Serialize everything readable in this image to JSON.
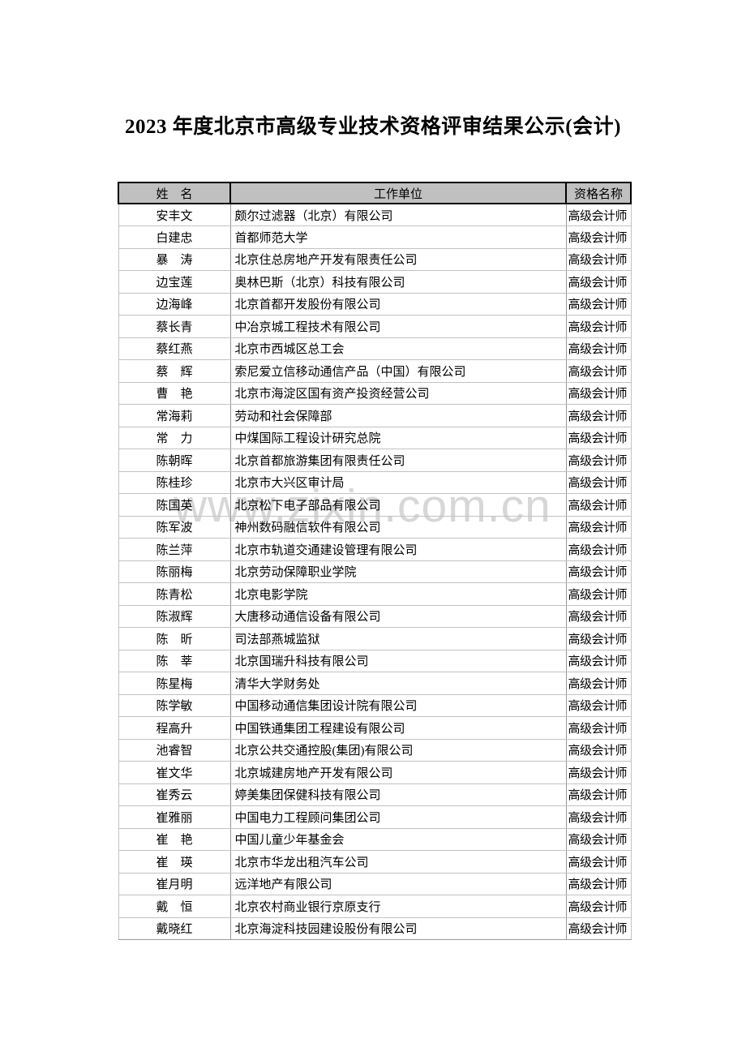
{
  "page": {
    "title": "2023 年度北京市高级专业技术资格评审结果公示(会计)",
    "watermark": "www.zixin.com.cn"
  },
  "table": {
    "headers": [
      "姓　名",
      "工作单位",
      "资格名称"
    ],
    "rows": [
      {
        "name": "安丰文",
        "employer": "颇尔过滤器（北京）有限公司",
        "qualification": "高级会计师"
      },
      {
        "name": "白建忠",
        "employer": "首都师范大学",
        "qualification": "高级会计师"
      },
      {
        "name": "暴　涛",
        "employer": "北京住总房地产开发有限责任公司",
        "qualification": "高级会计师"
      },
      {
        "name": "边宝莲",
        "employer": "奥林巴斯（北京）科技有限公司",
        "qualification": "高级会计师"
      },
      {
        "name": "边海峰",
        "employer": "北京首都开发股份有限公司",
        "qualification": "高级会计师"
      },
      {
        "name": "蔡长青",
        "employer": "中冶京城工程技术有限公司",
        "qualification": "高级会计师"
      },
      {
        "name": "蔡红燕",
        "employer": "北京市西城区总工会",
        "qualification": "高级会计师"
      },
      {
        "name": "蔡　辉",
        "employer": "索尼爱立信移动通信产品（中国）有限公司",
        "qualification": "高级会计师"
      },
      {
        "name": "曹　艳",
        "employer": "北京市海淀区国有资产投资经营公司",
        "qualification": "高级会计师"
      },
      {
        "name": "常海莉",
        "employer": "劳动和社会保障部",
        "qualification": "高级会计师"
      },
      {
        "name": "常　力",
        "employer": "中煤国际工程设计研究总院",
        "qualification": "高级会计师"
      },
      {
        "name": "陈朝晖",
        "employer": "北京首都旅游集团有限责任公司",
        "qualification": "高级会计师"
      },
      {
        "name": "陈桂珍",
        "employer": "北京市大兴区审计局",
        "qualification": "高级会计师"
      },
      {
        "name": "陈国英",
        "employer": "北京松下电子部品有限公司",
        "qualification": "高级会计师"
      },
      {
        "name": "陈军波",
        "employer": "神州数码融信软件有限公司",
        "qualification": "高级会计师"
      },
      {
        "name": "陈兰萍",
        "employer": "北京市轨道交通建设管理有限公司",
        "qualification": "高级会计师"
      },
      {
        "name": "陈丽梅",
        "employer": "北京劳动保障职业学院",
        "qualification": "高级会计师"
      },
      {
        "name": "陈青松",
        "employer": "北京电影学院",
        "qualification": "高级会计师"
      },
      {
        "name": "陈淑辉",
        "employer": "大唐移动通信设备有限公司",
        "qualification": "高级会计师"
      },
      {
        "name": "陈　昕",
        "employer": "司法部燕城监狱",
        "qualification": "高级会计师"
      },
      {
        "name": "陈　莘",
        "employer": "北京国瑞升科技有限公司",
        "qualification": "高级会计师"
      },
      {
        "name": "陈星梅",
        "employer": "清华大学财务处",
        "qualification": "高级会计师"
      },
      {
        "name": "陈学敏",
        "employer": "中国移动通信集团设计院有限公司",
        "qualification": "高级会计师"
      },
      {
        "name": "程高升",
        "employer": "中国铁通集团工程建设有限公司",
        "qualification": "高级会计师"
      },
      {
        "name": "池睿智",
        "employer": "北京公共交通控股(集团)有限公司",
        "qualification": "高级会计师"
      },
      {
        "name": "崔文华",
        "employer": "北京城建房地产开发有限公司",
        "qualification": "高级会计师"
      },
      {
        "name": "崔秀云",
        "employer": "婷美集团保健科技有限公司",
        "qualification": "高级会计师"
      },
      {
        "name": "崔雅丽",
        "employer": "中国电力工程顾问集团公司",
        "qualification": "高级会计师"
      },
      {
        "name": "崔　艳",
        "employer": "中国儿童少年基金会",
        "qualification": "高级会计师"
      },
      {
        "name": "崔　瑛",
        "employer": "北京市华龙出租汽车公司",
        "qualification": "高级会计师"
      },
      {
        "name": "崔月明",
        "employer": "远洋地产有限公司",
        "qualification": "高级会计师"
      },
      {
        "name": "戴　恒",
        "employer": "北京农村商业银行京原支行",
        "qualification": "高级会计师"
      },
      {
        "name": "戴晓红",
        "employer": "北京海淀科技园建设股份有限公司",
        "qualification": "高级会计师"
      }
    ]
  }
}
